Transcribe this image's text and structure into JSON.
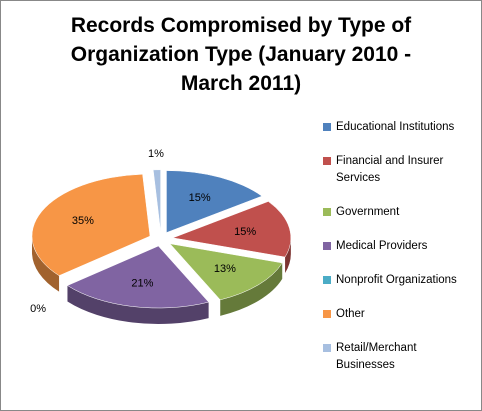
{
  "chart_data": {
    "type": "pie",
    "title": "Records Compromised by Type of Organization Type (January 2010 - March 2011)",
    "categories": [
      "Educational Institutions",
      "Financial and Insurer Services",
      "Government",
      "Medical Providers",
      "Nonprofit Organizations",
      "Other",
      "Retail/Merchant Businesses"
    ],
    "values": [
      15,
      15,
      13,
      21,
      0,
      35,
      1
    ],
    "value_labels": [
      "15%",
      "15%",
      "13%",
      "21%",
      "0%",
      "35%",
      "1%"
    ],
    "colors": [
      "#4f81bd",
      "#c0504d",
      "#9bbb59",
      "#8064a2",
      "#4bacc6",
      "#f79646",
      "#a7bfe0"
    ]
  }
}
